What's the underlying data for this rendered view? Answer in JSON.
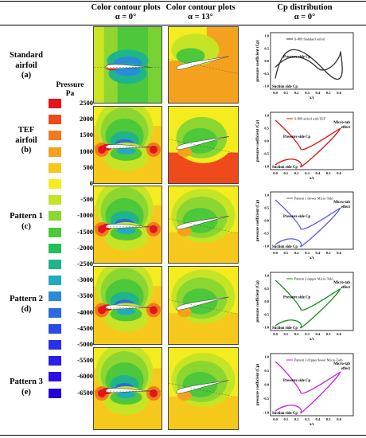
{
  "headers": {
    "contour0": {
      "line1": "Color contour plots",
      "line2": "α = 0°"
    },
    "contour13": {
      "line1": "Color contour plots",
      "line2": "α = 13°"
    },
    "cp": {
      "line1": "Cp distribution",
      "line2": "α = 0°"
    }
  },
  "rows": [
    {
      "name": "Standard airfoil",
      "line1": "Standard",
      "line2": "airfoil",
      "line3": "(a)"
    },
    {
      "name": "TEF airfoil",
      "line1": "TEF",
      "line2": "airfoil",
      "line3": "(b)"
    },
    {
      "name": "Pattern 1",
      "line1": "Pattern 1",
      "line2": "(c)",
      "line3": ""
    },
    {
      "name": "Pattern 2",
      "line1": "Pattern 2",
      "line2": "(d)",
      "line3": ""
    },
    {
      "name": "Pattern 3",
      "line1": "Pattern 3",
      "line2": "(e)",
      "line3": ""
    }
  ],
  "legend": {
    "title": "Pressure",
    "unit": "Pa",
    "levels": [
      {
        "label": "2500",
        "color": "#e8141c"
      },
      {
        "label": "2000",
        "color": "#ee4a1c"
      },
      {
        "label": "1500",
        "color": "#f27a1e"
      },
      {
        "label": "1000",
        "color": "#f4a21e"
      },
      {
        "label": "500",
        "color": "#f6c81c"
      },
      {
        "label": "0",
        "color": "#f4ec1e"
      },
      {
        "label": "-500",
        "color": "#c6e426"
      },
      {
        "label": "-1000",
        "color": "#8cd632"
      },
      {
        "label": "-1500",
        "color": "#4cc83a"
      },
      {
        "label": "-2000",
        "color": "#22be58"
      },
      {
        "label": "-2500",
        "color": "#20b48a"
      },
      {
        "label": "-3000",
        "color": "#22aabe"
      },
      {
        "label": "-3500",
        "color": "#2a8cd8"
      },
      {
        "label": "-4000",
        "color": "#2a6ae2"
      },
      {
        "label": "-4500",
        "color": "#2a4ae6"
      },
      {
        "label": "-5000",
        "color": "#2a30e8"
      },
      {
        "label": "-5500",
        "color": "#2a1ee8"
      },
      {
        "label": "-6000",
        "color": "#2a10e6"
      },
      {
        "label": "-6500",
        "color": "#2200d8"
      }
    ]
  },
  "cp_plots": [
    {
      "legend": "S-809 Standard airfoil",
      "color": "#333333",
      "pressure_label": "Pressure side Cp",
      "suction_label": "Suction side Cp",
      "microtab": ""
    },
    {
      "legend": "S-809 airfoil with TEF",
      "color": "#e01010",
      "pressure_label": "Pressure side Cp",
      "suction_label": "Suction side Cp",
      "microtab": "Micro-tab effect"
    },
    {
      "legend": "Pattern 1 (lower Micro-Tab)",
      "color": "#5a5ae6",
      "pressure_label": "Pressure side Cp",
      "suction_label": "Suction side Cp",
      "microtab": "Micro-tab effect"
    },
    {
      "legend": "Pattern 2 (upper Micro-Tab)",
      "color": "#12901a",
      "pressure_label": "Pressure side Cp",
      "suction_label": "Suction side Cp",
      "microtab": "Micro-tab effect"
    },
    {
      "legend": "Pattern 3 (Upper/lower Micro-Tab)",
      "color": "#c81ee6",
      "pressure_label": "Pressure side Cp",
      "suction_label": "Suction side Cp",
      "microtab": "Micro-tab effect"
    }
  ],
  "cp_axes": {
    "ylabel": "pressure coefficient (Cp)",
    "xlabel": "x/c",
    "yticks": [
      "1.0",
      "0.5",
      "0.0",
      "-0.5",
      "-1.0"
    ],
    "xticks": [
      "0.0",
      "0.1",
      "0.2",
      "0.3",
      "0.4",
      "0.5",
      "0.6"
    ]
  }
}
